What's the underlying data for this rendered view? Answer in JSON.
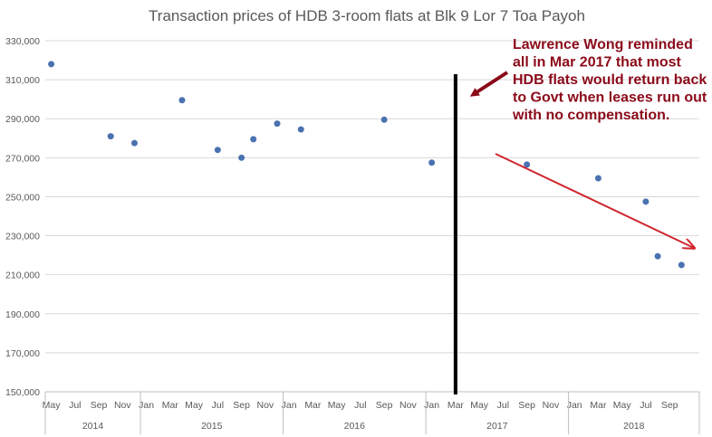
{
  "chart_data": {
    "type": "scatter",
    "title": "Transaction prices of HDB 3-room flats at Blk 9 Lor 7 Toa Payoh",
    "xlabel": "",
    "ylabel": "",
    "ylim": [
      150000,
      330000
    ],
    "yticks": [
      "150,000",
      "170,000",
      "190,000",
      "210,000",
      "230,000",
      "250,000",
      "270,000",
      "290,000",
      "310,000",
      "330,000"
    ],
    "grid": true,
    "xlim": [
      "2014-05",
      "2018-11"
    ],
    "month_ticks": [
      "May",
      "Jul",
      "Sep",
      "Nov",
      "Jan",
      "Mar",
      "May",
      "Jul",
      "Sep",
      "Nov",
      "Jan",
      "Mar",
      "May",
      "Jul",
      "Sep",
      "Nov",
      "Jan",
      "Mar",
      "May",
      "Jul",
      "Sep",
      "Nov",
      "Jan",
      "Mar",
      "May",
      "Jul",
      "Sep"
    ],
    "years": [
      "2014",
      "2015",
      "2016",
      "2017",
      "2018"
    ],
    "points": [
      {
        "x": "2014-05",
        "y": 318000
      },
      {
        "x": "2014-10",
        "y": 281000
      },
      {
        "x": "2014-12",
        "y": 277500
      },
      {
        "x": "2015-04",
        "y": 299500
      },
      {
        "x": "2015-07",
        "y": 274000
      },
      {
        "x": "2015-09",
        "y": 270000
      },
      {
        "x": "2015-10",
        "y": 279500
      },
      {
        "x": "2015-12",
        "y": 287500
      },
      {
        "x": "2016-02",
        "y": 284500
      },
      {
        "x": "2016-09",
        "y": 289500
      },
      {
        "x": "2017-01",
        "y": 267500
      },
      {
        "x": "2017-09",
        "y": 266500
      },
      {
        "x": "2018-03",
        "y": 259500
      },
      {
        "x": "2018-07",
        "y": 247500
      },
      {
        "x": "2018-08",
        "y": 219500
      },
      {
        "x": "2018-10",
        "y": 215000
      }
    ],
    "event_line": {
      "x": "2017-03"
    },
    "annotation": {
      "lines": [
        "Lawrence Wong reminded",
        "all in Mar 2017 that most",
        "HDB flats would return back",
        "to Govt when leases run out",
        "with no compensation."
      ]
    },
    "colors": {
      "marker": "#4a72b0",
      "grid": "#d9d9d9",
      "event_line": "#000000",
      "annotation": "#8b0a1a",
      "trend_arrow": "#d0262e"
    }
  }
}
